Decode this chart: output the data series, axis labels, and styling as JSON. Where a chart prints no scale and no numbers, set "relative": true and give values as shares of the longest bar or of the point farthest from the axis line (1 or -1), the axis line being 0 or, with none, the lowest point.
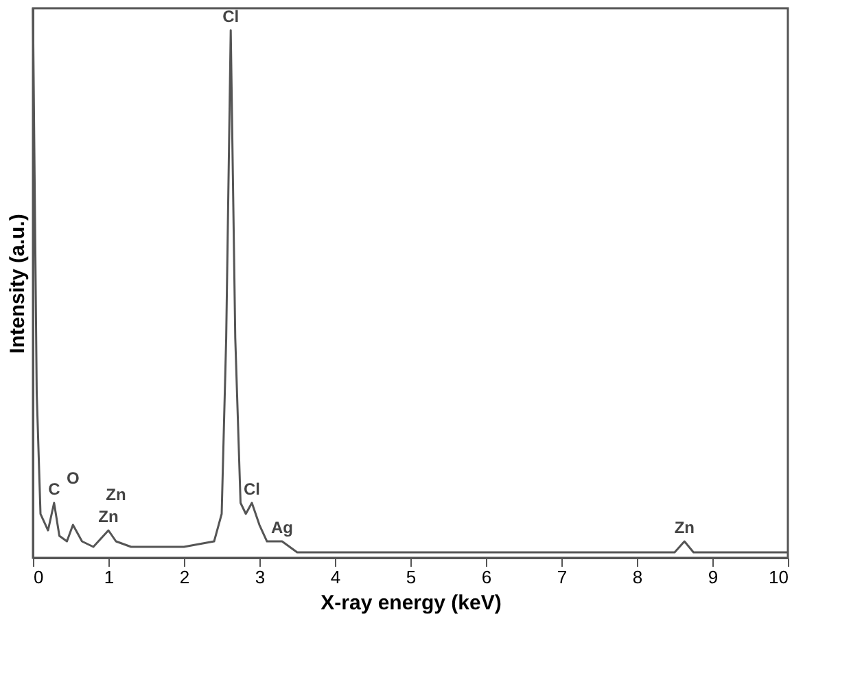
{
  "chart_data": {
    "type": "line",
    "xlabel": "X-ray energy (keV)",
    "ylabel": "Intensity (a.u.)",
    "relative": true,
    "xlim": [
      0,
      10
    ],
    "xticks": [
      0,
      1,
      2,
      3,
      4,
      5,
      6,
      7,
      8,
      9,
      10
    ],
    "series": [
      {
        "color": "#555555",
        "x": [
          0.0,
          0.05,
          0.1,
          0.2,
          0.28,
          0.35,
          0.45,
          0.53,
          0.65,
          0.8,
          1.0,
          1.1,
          1.3,
          2.0,
          2.4,
          2.5,
          2.56,
          2.62,
          2.68,
          2.75,
          2.82,
          2.9,
          3.0,
          3.1,
          3.3,
          3.5,
          4.0,
          5.0,
          6.0,
          7.0,
          8.0,
          8.5,
          8.63,
          8.75,
          9.0,
          10.0
        ],
        "values": [
          1.0,
          0.3,
          0.08,
          0.05,
          0.1,
          0.04,
          0.03,
          0.06,
          0.03,
          0.02,
          0.05,
          0.03,
          0.02,
          0.02,
          0.03,
          0.08,
          0.4,
          0.96,
          0.4,
          0.1,
          0.08,
          0.1,
          0.06,
          0.03,
          0.03,
          0.01,
          0.01,
          0.01,
          0.01,
          0.01,
          0.01,
          0.01,
          0.03,
          0.01,
          0.01,
          0.01
        ]
      }
    ],
    "annotations": [
      {
        "text": "C",
        "x": 0.28,
        "y": 0.1
      },
      {
        "text": "O",
        "x": 0.53,
        "y": 0.06
      },
      {
        "text": "Zn",
        "x": 1.0,
        "y": 0.05
      },
      {
        "text": "Zn",
        "x": 1.1,
        "y": 0.03
      },
      {
        "text": "Cl",
        "x": 2.62,
        "y": 0.96
      },
      {
        "text": "Cl",
        "x": 2.9,
        "y": 0.1
      },
      {
        "text": "Ag",
        "x": 3.3,
        "y": 0.03
      },
      {
        "text": "Zn",
        "x": 8.63,
        "y": 0.03
      }
    ],
    "grid": false
  }
}
